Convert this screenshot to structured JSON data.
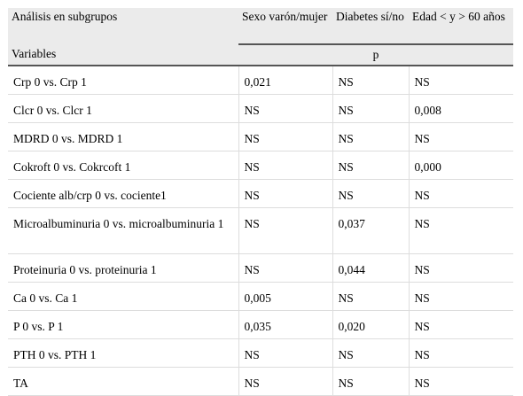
{
  "header": {
    "group_label": "Análisis en subgrupos",
    "variables_label": "Variables",
    "p_label": "p",
    "columns": [
      "Sexo varón/mujer",
      "Diabetes sí/no",
      "Edad < y > 60 años"
    ]
  },
  "rows": [
    {
      "variable": "Crp 0 vs. Crp 1",
      "sexo": "0,021",
      "diabetes": "NS",
      "edad": "NS"
    },
    {
      "variable": "Clcr 0 vs. Clcr 1",
      "sexo": "NS",
      "diabetes": "NS",
      "edad": "0,008"
    },
    {
      "variable": "MDRD 0 vs. MDRD 1",
      "sexo": "NS",
      "diabetes": "NS",
      "edad": "NS"
    },
    {
      "variable": "Cokroft 0 vs. Cokrcoft 1",
      "sexo": "NS",
      "diabetes": "NS",
      "edad": "0,000"
    },
    {
      "variable": "Cociente alb/crp 0 vs. cociente1",
      "sexo": "NS",
      "diabetes": "NS",
      "edad": "NS"
    },
    {
      "variable": "Microalbuminuria 0 vs. microalbuminuria 1",
      "sexo": "NS",
      "diabetes": "0,037",
      "edad": "NS"
    },
    {
      "variable": "Proteinuria 0 vs. proteinuria 1",
      "sexo": "NS",
      "diabetes": "0,044",
      "edad": "NS"
    },
    {
      "variable": "Ca 0 vs. Ca 1",
      "sexo": "0,005",
      "diabetes": "NS",
      "edad": "NS"
    },
    {
      "variable": "P 0 vs. P 1",
      "sexo": "0,035",
      "diabetes": "0,020",
      "edad": "NS"
    },
    {
      "variable": "PTH 0 vs. PTH 1",
      "sexo": "NS",
      "diabetes": "NS",
      "edad": "NS"
    },
    {
      "variable": "TA",
      "sexo": "NS",
      "diabetes": "NS",
      "edad": "NS"
    }
  ]
}
